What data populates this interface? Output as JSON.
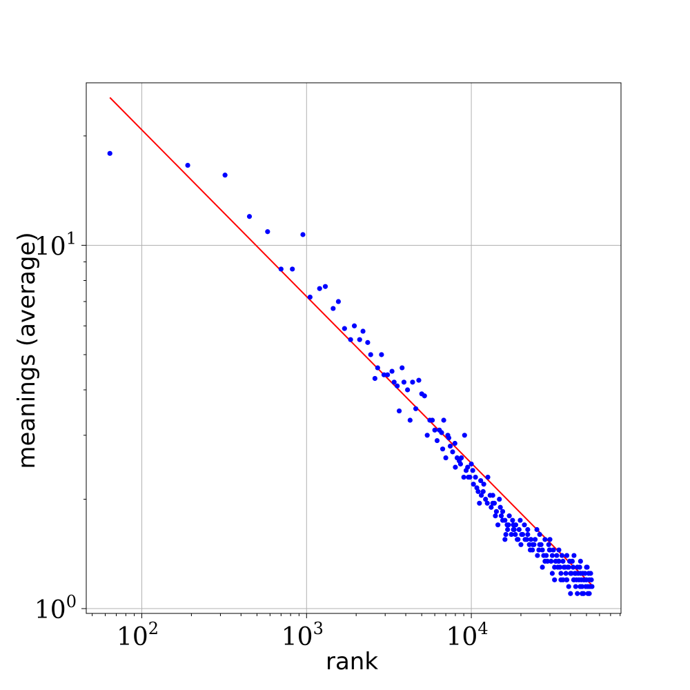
{
  "chart_data": {
    "type": "scatter",
    "title": "",
    "xlabel": "rank",
    "ylabel": "meanings (average)",
    "x_scale": "log",
    "y_scale": "log",
    "xlim": [
      46,
      81000
    ],
    "ylim": [
      0.97,
      28
    ],
    "grid": true,
    "colors": {
      "points": "#0000ff",
      "fit": "#ff0000",
      "grid": "#b0b0b0"
    },
    "x_ticks": [
      {
        "base": "10",
        "exp": "2",
        "value": 100
      },
      {
        "base": "10",
        "exp": "3",
        "value": 1000
      },
      {
        "base": "10",
        "exp": "4",
        "value": 10000
      }
    ],
    "y_ticks": [
      {
        "base": "10",
        "exp": "0",
        "value": 1
      },
      {
        "base": "10",
        "exp": "1",
        "value": 10
      }
    ],
    "fit_line": {
      "x": [
        64,
        54000
      ],
      "y": [
        25.5,
        1.16
      ]
    },
    "series": [
      {
        "points": [
          [
            64,
            17.9
          ],
          [
            190,
            16.6
          ],
          [
            320,
            15.6
          ],
          [
            450,
            12.0
          ],
          [
            580,
            10.9
          ],
          [
            700,
            8.6
          ],
          [
            820,
            8.6
          ],
          [
            950,
            10.7
          ],
          [
            1050,
            7.2
          ],
          [
            1200,
            7.6
          ],
          [
            1300,
            7.7
          ],
          [
            1450,
            6.7
          ],
          [
            1560,
            7.0
          ],
          [
            1700,
            5.9
          ],
          [
            1850,
            5.5
          ],
          [
            1950,
            6.0
          ],
          [
            2100,
            5.5
          ],
          [
            2200,
            5.8
          ],
          [
            2350,
            5.4
          ],
          [
            2450,
            5.0
          ],
          [
            2600,
            4.3
          ],
          [
            2700,
            4.6
          ],
          [
            2850,
            5.0
          ],
          [
            2950,
            4.4
          ],
          [
            3100,
            4.4
          ],
          [
            3300,
            4.5
          ],
          [
            3400,
            4.2
          ],
          [
            3550,
            4.1
          ],
          [
            3650,
            3.5
          ],
          [
            3800,
            4.6
          ],
          [
            3900,
            4.2
          ],
          [
            4100,
            4.0
          ],
          [
            4250,
            3.3
          ],
          [
            4400,
            4.2
          ],
          [
            4600,
            3.55
          ],
          [
            4800,
            4.25
          ],
          [
            5000,
            3.9
          ],
          [
            5200,
            3.85
          ],
          [
            5400,
            3.0
          ],
          [
            5600,
            3.3
          ],
          [
            5800,
            3.3
          ],
          [
            6000,
            3.1
          ],
          [
            6200,
            2.9
          ],
          [
            6400,
            3.1
          ],
          [
            6600,
            3.05
          ],
          [
            6800,
            3.3
          ],
          [
            7000,
            2.6
          ],
          [
            7200,
            3.0
          ],
          [
            7450,
            2.8
          ],
          [
            7700,
            2.7
          ],
          [
            7950,
            2.85
          ],
          [
            8200,
            2.6
          ],
          [
            8450,
            2.55
          ],
          [
            8700,
            2.6
          ],
          [
            9000,
            2.3
          ],
          [
            9300,
            2.4
          ],
          [
            9600,
            2.3
          ],
          [
            10000,
            2.5
          ],
          [
            10300,
            2.2
          ],
          [
            10600,
            2.3
          ],
          [
            11000,
            2.1
          ],
          [
            11400,
            2.25
          ],
          [
            11800,
            2.1
          ],
          [
            12200,
            2.0
          ],
          [
            12600,
            2.3
          ],
          [
            13000,
            2.05
          ],
          [
            13500,
            1.95
          ],
          [
            14000,
            1.8
          ],
          [
            14500,
            1.7
          ],
          [
            15000,
            1.9
          ],
          [
            15500,
            1.85
          ],
          [
            16000,
            1.75
          ],
          [
            16500,
            1.7
          ],
          [
            17000,
            1.8
          ],
          [
            17500,
            1.6
          ],
          [
            18000,
            1.65
          ],
          [
            18600,
            1.7
          ],
          [
            19200,
            1.55
          ],
          [
            19800,
            1.75
          ],
          [
            20500,
            1.6
          ],
          [
            21200,
            1.55
          ],
          [
            22000,
            1.6
          ],
          [
            22800,
            1.45
          ],
          [
            23600,
            1.5
          ],
          [
            24400,
            1.55
          ],
          [
            25200,
            1.4
          ],
          [
            26000,
            1.5
          ],
          [
            27000,
            1.45
          ],
          [
            28000,
            1.55
          ],
          [
            29000,
            1.35
          ],
          [
            30000,
            1.45
          ],
          [
            31000,
            1.4
          ],
          [
            32000,
            1.3
          ],
          [
            33000,
            1.4
          ],
          [
            34000,
            1.35
          ],
          [
            35000,
            1.25
          ],
          [
            36000,
            1.35
          ],
          [
            37000,
            1.3
          ],
          [
            38000,
            1.2
          ],
          [
            39000,
            1.3
          ],
          [
            40000,
            1.25
          ],
          [
            41000,
            1.35
          ],
          [
            42000,
            1.2
          ],
          [
            43000,
            1.25
          ],
          [
            44000,
            1.3
          ],
          [
            45000,
            1.2
          ],
          [
            46000,
            1.25
          ],
          [
            47000,
            1.15
          ],
          [
            48000,
            1.2
          ],
          [
            49000,
            1.25
          ],
          [
            50000,
            1.2
          ],
          [
            51000,
            1.15
          ],
          [
            52000,
            1.2
          ],
          [
            53000,
            1.25
          ],
          [
            54000,
            1.15
          ],
          [
            8000,
            2.45
          ],
          [
            9100,
            3.0
          ],
          [
            10200,
            2.4
          ],
          [
            11500,
            2.05
          ],
          [
            13200,
            1.9
          ],
          [
            14800,
            2.0
          ],
          [
            16200,
            1.6
          ],
          [
            17800,
            1.75
          ],
          [
            19500,
            1.65
          ],
          [
            21000,
            1.7
          ],
          [
            23000,
            1.55
          ],
          [
            25000,
            1.65
          ],
          [
            27500,
            1.4
          ],
          [
            29500,
            1.5
          ],
          [
            31500,
            1.45
          ],
          [
            33500,
            1.3
          ],
          [
            35500,
            1.4
          ],
          [
            37500,
            1.25
          ],
          [
            39500,
            1.35
          ],
          [
            41500,
            1.3
          ],
          [
            43500,
            1.2
          ],
          [
            45500,
            1.3
          ],
          [
            47500,
            1.25
          ],
          [
            49500,
            1.15
          ],
          [
            51500,
            1.25
          ],
          [
            53500,
            1.2
          ],
          [
            12500,
            1.95
          ],
          [
            15500,
            1.75
          ],
          [
            18500,
            1.6
          ],
          [
            22500,
            1.5
          ],
          [
            26500,
            1.5
          ],
          [
            30500,
            1.35
          ],
          [
            34500,
            1.3
          ],
          [
            38500,
            1.3
          ],
          [
            42500,
            1.25
          ],
          [
            46500,
            1.2
          ],
          [
            50500,
            1.3
          ],
          [
            6700,
            2.75
          ],
          [
            7300,
            2.95
          ],
          [
            8600,
            2.5
          ],
          [
            9500,
            2.45
          ],
          [
            10800,
            2.15
          ],
          [
            11900,
            2.2
          ],
          [
            13800,
            1.95
          ],
          [
            15200,
            1.8
          ],
          [
            16800,
            1.7
          ],
          [
            18200,
            1.65
          ],
          [
            20200,
            1.6
          ],
          [
            24000,
            1.5
          ],
          [
            28500,
            1.4
          ],
          [
            32500,
            1.35
          ],
          [
            36500,
            1.3
          ],
          [
            40500,
            1.25
          ],
          [
            44500,
            1.25
          ],
          [
            48500,
            1.2
          ],
          [
            52500,
            1.15
          ],
          [
            14200,
            1.85
          ],
          [
            16600,
            1.65
          ],
          [
            19000,
            1.55
          ],
          [
            21700,
            1.55
          ],
          [
            25700,
            1.45
          ],
          [
            29800,
            1.45
          ],
          [
            33800,
            1.35
          ],
          [
            37800,
            1.2
          ],
          [
            41800,
            1.2
          ],
          [
            45800,
            1.15
          ],
          [
            49800,
            1.2
          ],
          [
            27000,
            1.3
          ],
          [
            31000,
            1.25
          ],
          [
            35000,
            1.2
          ],
          [
            39000,
            1.15
          ],
          [
            43000,
            1.15
          ],
          [
            47000,
            1.1
          ],
          [
            51000,
            1.1
          ],
          [
            20000,
            1.5
          ],
          [
            23500,
            1.45
          ],
          [
            28000,
            1.35
          ],
          [
            32000,
            1.2
          ],
          [
            36000,
            1.2
          ],
          [
            40000,
            1.1
          ],
          [
            44000,
            1.1
          ],
          [
            48000,
            1.1
          ],
          [
            52000,
            1.1
          ],
          [
            26000,
            1.6
          ],
          [
            30000,
            1.55
          ],
          [
            34000,
            1.45
          ],
          [
            38000,
            1.4
          ],
          [
            42000,
            1.4
          ],
          [
            46000,
            1.35
          ],
          [
            50000,
            1.3
          ],
          [
            22000,
            1.65
          ],
          [
            18000,
            1.7
          ],
          [
            16000,
            1.55
          ],
          [
            13500,
            2.05
          ],
          [
            11200,
            1.95
          ],
          [
            9800,
            2.3
          ]
        ]
      }
    ]
  }
}
